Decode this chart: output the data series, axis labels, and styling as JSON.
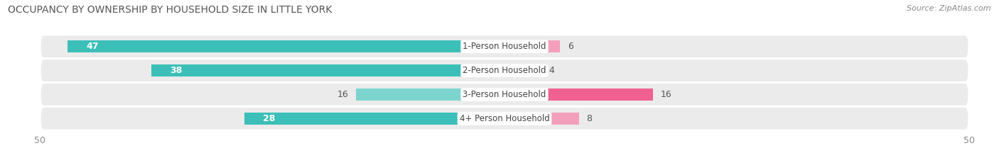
{
  "title": "OCCUPANCY BY OWNERSHIP BY HOUSEHOLD SIZE IN LITTLE YORK",
  "source": "Source: ZipAtlas.com",
  "categories": [
    "1-Person Household",
    "2-Person Household",
    "3-Person Household",
    "4+ Person Household"
  ],
  "owner_values": [
    47,
    38,
    16,
    28
  ],
  "renter_values": [
    6,
    4,
    16,
    8
  ],
  "owner_color_large": "#3BBFB8",
  "owner_color_small": "#7DD4CF",
  "renter_color_large": "#F06090",
  "renter_color_small": "#F4A0BC",
  "row_bg_color": "#EBEBEB",
  "axis_max": 50,
  "title_fontsize": 10,
  "source_fontsize": 8,
  "bar_label_fontsize": 9,
  "category_fontsize": 8.5,
  "legend_fontsize": 9,
  "owner_threshold": 20,
  "renter_threshold": 10
}
